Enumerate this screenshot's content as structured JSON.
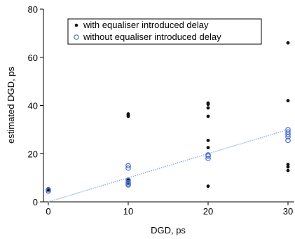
{
  "chart_data": {
    "type": "scatter",
    "xlabel": "DGD, ps",
    "ylabel": "estimated DGD, ps",
    "xlim": [
      0,
      30
    ],
    "ylim": [
      0,
      80
    ],
    "xticks": [
      0,
      10,
      20,
      30
    ],
    "yticks": [
      0,
      20,
      40,
      60,
      80
    ],
    "xtick_labels": [
      "0",
      "10",
      "20",
      "30"
    ],
    "ytick_labels": [
      "0",
      "20",
      "40",
      "60",
      "80"
    ],
    "grid": false,
    "legend_position": "top-right",
    "series": [
      {
        "name": "with equaliser introduced delay",
        "marker": "filled-dot",
        "color": "#111111",
        "points": [
          [
            0,
            5
          ],
          [
            0,
            5.5
          ],
          [
            10,
            36
          ],
          [
            10,
            36.5
          ],
          [
            10,
            35.5
          ],
          [
            10,
            8
          ],
          [
            10,
            9
          ],
          [
            20,
            6.5
          ],
          [
            20,
            22.5
          ],
          [
            20,
            25.5
          ],
          [
            20,
            35.5
          ],
          [
            20,
            39
          ],
          [
            20,
            40.5
          ],
          [
            20,
            41
          ],
          [
            30,
            13
          ],
          [
            30,
            14.5
          ],
          [
            30,
            15.5
          ],
          [
            30,
            42
          ],
          [
            30,
            66
          ]
        ]
      },
      {
        "name": "without equaliser introduced delay",
        "marker": "open-circle",
        "color": "#4a6fd1",
        "points": [
          [
            0,
            4.5
          ],
          [
            0,
            5
          ],
          [
            10,
            7
          ],
          [
            10,
            7.5
          ],
          [
            10,
            8
          ],
          [
            10,
            9
          ],
          [
            10,
            14
          ],
          [
            10,
            15
          ],
          [
            20,
            18
          ],
          [
            20,
            19
          ],
          [
            20,
            19.5
          ],
          [
            30,
            25.5
          ],
          [
            30,
            27
          ],
          [
            30,
            28
          ],
          [
            30,
            29
          ],
          [
            30,
            30
          ]
        ]
      }
    ],
    "trendline": {
      "style": "dotted",
      "color": "#8fb0e6",
      "from": [
        0,
        0
      ],
      "to": [
        30,
        30
      ]
    }
  }
}
